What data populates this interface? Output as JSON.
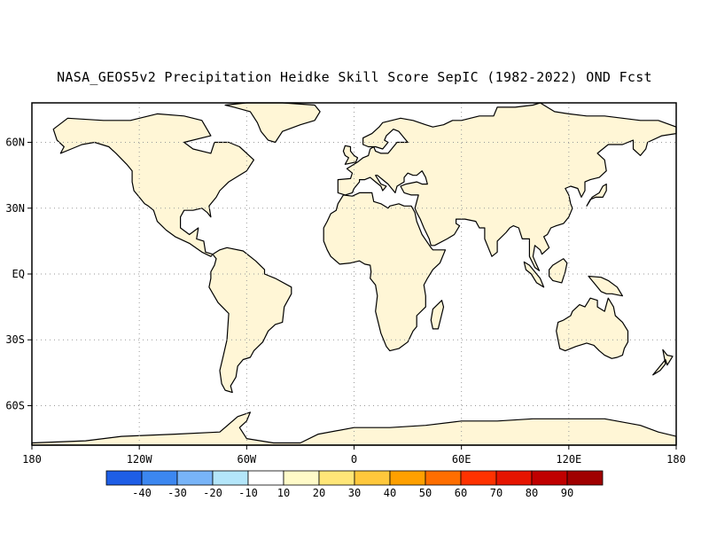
{
  "title": "NASA_GEOS5v2 Precipitation Heidke Skill Score SepIC (1982-2022) OND Fcst",
  "map": {
    "lon_range": [
      -180,
      180
    ],
    "lat_range": [
      -78,
      78
    ],
    "grid": true,
    "lat_ticks": [
      {
        "lat": 60,
        "label": "60N"
      },
      {
        "lat": 30,
        "label": "30N"
      },
      {
        "lat": 0,
        "label": "EQ"
      },
      {
        "lat": -30,
        "label": "30S"
      },
      {
        "lat": -60,
        "label": "60S"
      }
    ],
    "lon_ticks": [
      {
        "lon": -180,
        "label": "180"
      },
      {
        "lon": -120,
        "label": "120W"
      },
      {
        "lon": -60,
        "label": "60W"
      },
      {
        "lon": 0,
        "label": "0"
      },
      {
        "lon": 60,
        "label": "60E"
      },
      {
        "lon": 120,
        "label": "120E"
      },
      {
        "lon": 180,
        "label": "180"
      }
    ]
  },
  "colorbar": {
    "colors": [
      "#1e5ee6",
      "#3c87f0",
      "#78b4f8",
      "#b4e6fa",
      "#ffffff",
      "#fffac8",
      "#ffe678",
      "#ffc83c",
      "#ffa000",
      "#ff6e00",
      "#ff3200",
      "#e61400",
      "#c00000",
      "#a00000"
    ],
    "labels": [
      "-40",
      "-30",
      "-20",
      "-10",
      "10",
      "20",
      "30",
      "40",
      "50",
      "60",
      "70",
      "80",
      "90"
    ]
  }
}
